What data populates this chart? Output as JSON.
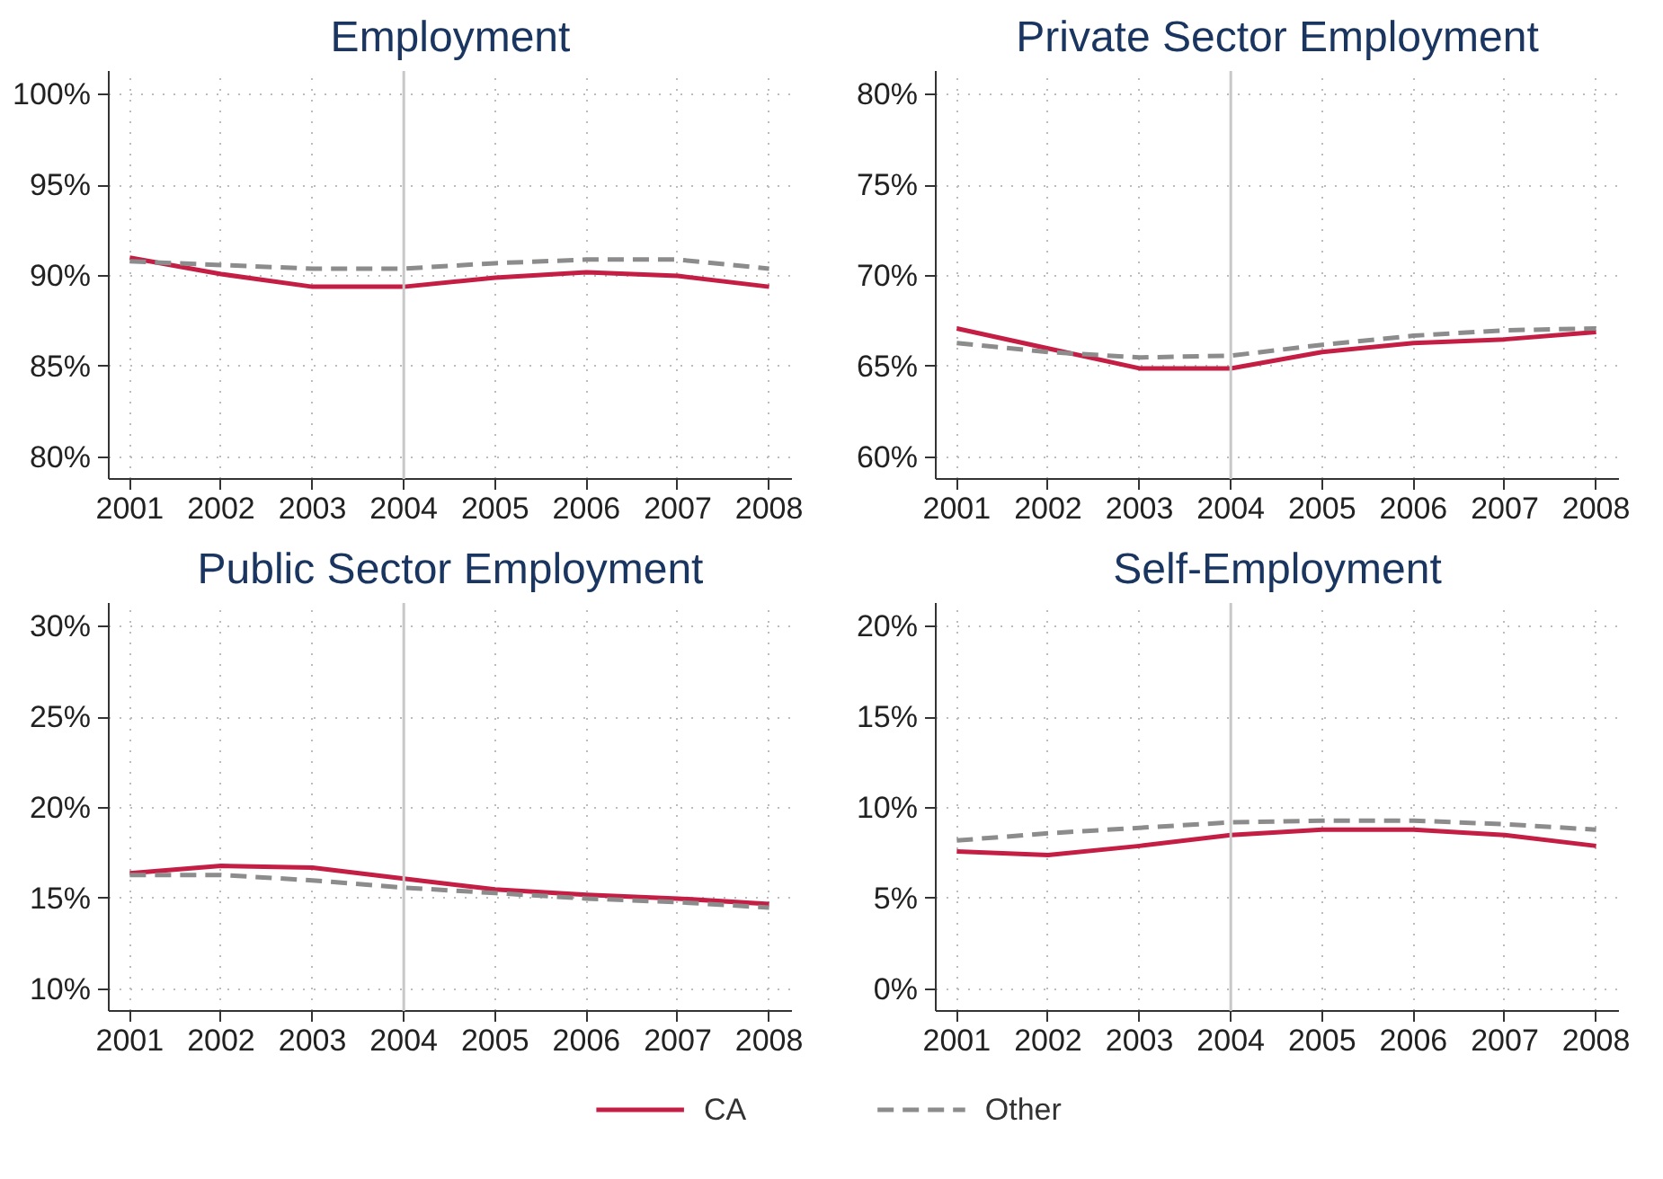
{
  "chart_data": [
    {
      "type": "line",
      "title": "Employment",
      "x": [
        2001,
        2002,
        2003,
        2004,
        2005,
        2006,
        2007,
        2008
      ],
      "xlim": [
        2000.77,
        2008.25
      ],
      "xticks": [
        2001,
        2002,
        2003,
        2004,
        2005,
        2006,
        2007,
        2008
      ],
      "ylim": [
        78.8,
        101.3
      ],
      "yticks": [
        {
          "value": 80,
          "label": "80%"
        },
        {
          "value": 85,
          "label": "85%"
        },
        {
          "value": 90,
          "label": "90%"
        },
        {
          "value": 95,
          "label": "95%"
        },
        {
          "value": 100,
          "label": "100%"
        }
      ],
      "grid": true,
      "ref_lines": [
        {
          "axis": "x",
          "value": 2004,
          "color": "#c8c8c8"
        }
      ],
      "series": [
        {
          "color": "#c41e45",
          "line_style": "solid",
          "values": [
            91.0,
            90.1,
            89.4,
            89.4,
            89.9,
            90.2,
            90.0,
            89.4
          ]
        },
        {
          "color": "#8c8c8c",
          "line_style": "dashed",
          "values": [
            90.8,
            90.6,
            90.4,
            90.4,
            90.7,
            90.9,
            90.9,
            90.4
          ]
        }
      ]
    },
    {
      "type": "line",
      "title": "Private Sector Employment",
      "x": [
        2001,
        2002,
        2003,
        2004,
        2005,
        2006,
        2007,
        2008
      ],
      "xlim": [
        2000.77,
        2008.25
      ],
      "xticks": [
        2001,
        2002,
        2003,
        2004,
        2005,
        2006,
        2007,
        2008
      ],
      "ylim": [
        58.8,
        81.3
      ],
      "yticks": [
        {
          "value": 60,
          "label": "60%"
        },
        {
          "value": 65,
          "label": "65%"
        },
        {
          "value": 70,
          "label": "70%"
        },
        {
          "value": 75,
          "label": "75%"
        },
        {
          "value": 80,
          "label": "80%"
        }
      ],
      "grid": true,
      "ref_lines": [
        {
          "axis": "x",
          "value": 2004,
          "color": "#c8c8c8"
        }
      ],
      "series": [
        {
          "color": "#c41e45",
          "line_style": "solid",
          "values": [
            67.1,
            66.0,
            64.9,
            64.9,
            65.8,
            66.3,
            66.5,
            66.9
          ]
        },
        {
          "color": "#8c8c8c",
          "line_style": "dashed",
          "values": [
            66.3,
            65.8,
            65.5,
            65.6,
            66.2,
            66.7,
            67.0,
            67.1
          ]
        }
      ]
    },
    {
      "type": "line",
      "title": "Public Sector Employment",
      "x": [
        2001,
        2002,
        2003,
        2004,
        2005,
        2006,
        2007,
        2008
      ],
      "xlim": [
        2000.77,
        2008.25
      ],
      "xticks": [
        2001,
        2002,
        2003,
        2004,
        2005,
        2006,
        2007,
        2008
      ],
      "ylim": [
        8.8,
        31.3
      ],
      "yticks": [
        {
          "value": 10,
          "label": "10%"
        },
        {
          "value": 15,
          "label": "15%"
        },
        {
          "value": 20,
          "label": "20%"
        },
        {
          "value": 25,
          "label": "25%"
        },
        {
          "value": 30,
          "label": "30%"
        }
      ],
      "grid": true,
      "ref_lines": [
        {
          "axis": "x",
          "value": 2004,
          "color": "#c8c8c8"
        }
      ],
      "series": [
        {
          "color": "#c41e45",
          "line_style": "solid",
          "values": [
            16.4,
            16.8,
            16.7,
            16.1,
            15.5,
            15.2,
            15.0,
            14.7
          ]
        },
        {
          "color": "#8c8c8c",
          "line_style": "dashed",
          "values": [
            16.3,
            16.3,
            16.0,
            15.6,
            15.3,
            15.0,
            14.8,
            14.5
          ]
        }
      ]
    },
    {
      "type": "line",
      "title": "Self-Employment",
      "x": [
        2001,
        2002,
        2003,
        2004,
        2005,
        2006,
        2007,
        2008
      ],
      "xlim": [
        2000.77,
        2008.25
      ],
      "xticks": [
        2001,
        2002,
        2003,
        2004,
        2005,
        2006,
        2007,
        2008
      ],
      "ylim": [
        -1.2,
        21.3
      ],
      "yticks": [
        {
          "value": 0,
          "label": "0%"
        },
        {
          "value": 5,
          "label": "5%"
        },
        {
          "value": 10,
          "label": "10%"
        },
        {
          "value": 15,
          "label": "15%"
        },
        {
          "value": 20,
          "label": "20%"
        }
      ],
      "grid": true,
      "legend": "bottom",
      "ref_lines": [
        {
          "axis": "x",
          "value": 2004,
          "color": "#c8c8c8"
        }
      ],
      "series": [
        {
          "name": "CA",
          "color": "#c41e45",
          "line_style": "solid",
          "values": [
            7.6,
            7.4,
            7.9,
            8.5,
            8.8,
            8.8,
            8.5,
            7.9
          ]
        },
        {
          "name": "Other",
          "color": "#8c8c8c",
          "line_style": "dashed",
          "values": [
            8.2,
            8.6,
            8.9,
            9.2,
            9.3,
            9.3,
            9.1,
            8.8
          ]
        }
      ]
    }
  ]
}
